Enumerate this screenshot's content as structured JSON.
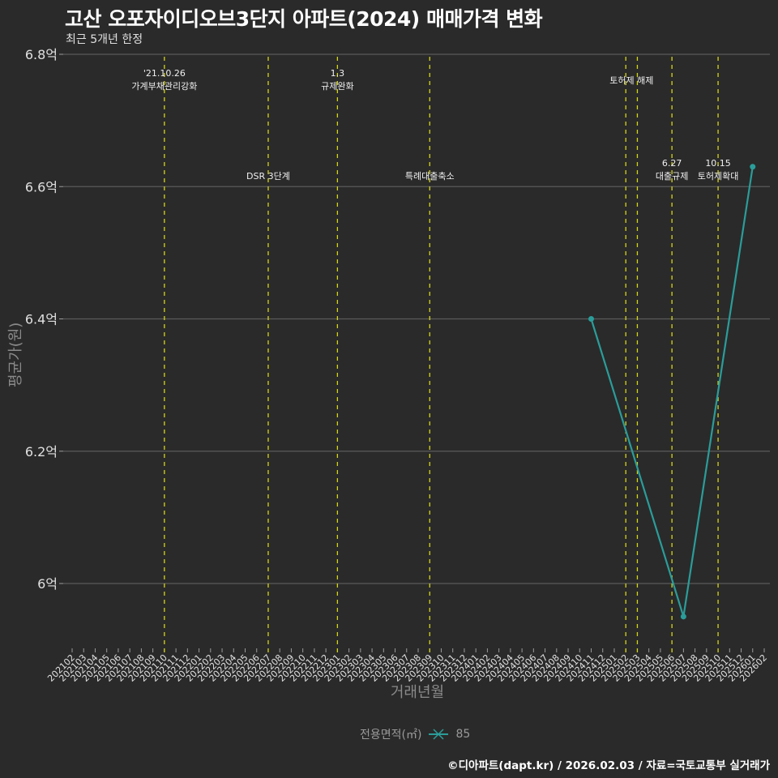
{
  "header": {
    "title": "고산 오포자이디오브3단지 아파트(2024) 매매가격 변화",
    "subtitle": "최근 5개년 한정"
  },
  "axes": {
    "y_title": "평균가(원)",
    "x_title": "거래년월"
  },
  "legend": {
    "title": "전용면적(㎡)",
    "icon": "line-point-icon",
    "entries": [
      {
        "label": "85",
        "color": "#2a9d9a"
      }
    ]
  },
  "caption": "©디아파트(dapt.kr) / 2026.02.03 / 자료=국토교통부 실거래가",
  "colors": {
    "background": "#2a2a2a",
    "grid": "#5a5a5a",
    "series": "#2a9d9a",
    "event_line": "#d4d41a",
    "text": "#e8e8e8"
  },
  "chart_data": {
    "type": "line",
    "title": "고산 오포자이디오브3단지 아파트(2024) 매매가격 변화",
    "subtitle": "최근 5개년 한정",
    "xlabel": "거래년월",
    "ylabel": "평균가(원)",
    "ylim": [
      5.92,
      6.8
    ],
    "y_ticks": [
      {
        "value": 6.0,
        "label": "6억"
      },
      {
        "value": 6.2,
        "label": "6.2억"
      },
      {
        "value": 6.4,
        "label": "6.4억"
      },
      {
        "value": 6.6,
        "label": "6.6억"
      },
      {
        "value": 6.8,
        "label": "6.8억"
      }
    ],
    "grid": true,
    "legend_position": "bottom",
    "x_ticks": [
      "202102",
      "202103",
      "202104",
      "202105",
      "202106",
      "202107",
      "202108",
      "202109",
      "202110",
      "202111",
      "202112",
      "202201",
      "202202",
      "202203",
      "202204",
      "202205",
      "202206",
      "202207",
      "202208",
      "202209",
      "202210",
      "202211",
      "202212",
      "202301",
      "202302",
      "202303",
      "202304",
      "202305",
      "202306",
      "202307",
      "202308",
      "202309",
      "202310",
      "202311",
      "202312",
      "202401",
      "202402",
      "202403",
      "202404",
      "202405",
      "202406",
      "202407",
      "202408",
      "202409",
      "202410",
      "202411",
      "202412",
      "202501",
      "202502",
      "202503",
      "202504",
      "202505",
      "202506",
      "202507",
      "202508",
      "202509",
      "202510",
      "202511",
      "202512",
      "202601",
      "202602"
    ],
    "series": [
      {
        "name": "85",
        "x": [
          "202411",
          "202507",
          "202601"
        ],
        "values": [
          6.4,
          5.95,
          6.63
        ]
      }
    ],
    "events": [
      {
        "x": "202110",
        "label_top": "'21.10.26",
        "label_bottom": "가계부채관리강화",
        "row": "upper"
      },
      {
        "x": "202207",
        "label_top": "",
        "label_bottom": "DSR 3단계",
        "row": "lower"
      },
      {
        "x": "202301",
        "label_top": "1.3",
        "label_bottom": "규제완화",
        "row": "upper"
      },
      {
        "x": "202309",
        "label_top": "",
        "label_bottom": "특례대출축소",
        "row": "lower"
      },
      {
        "x": "202502",
        "label_top": "",
        "label_bottom": "토허제 해제",
        "row": "upper"
      },
      {
        "x": "202503",
        "label_top": "",
        "label_bottom": "",
        "row": "none"
      },
      {
        "x": "202506",
        "label_top": "6.27",
        "label_bottom": "대출규제",
        "row": "lower"
      },
      {
        "x": "202510",
        "label_top": "10.15",
        "label_bottom": "토허제확대",
        "row": "lower"
      }
    ]
  }
}
